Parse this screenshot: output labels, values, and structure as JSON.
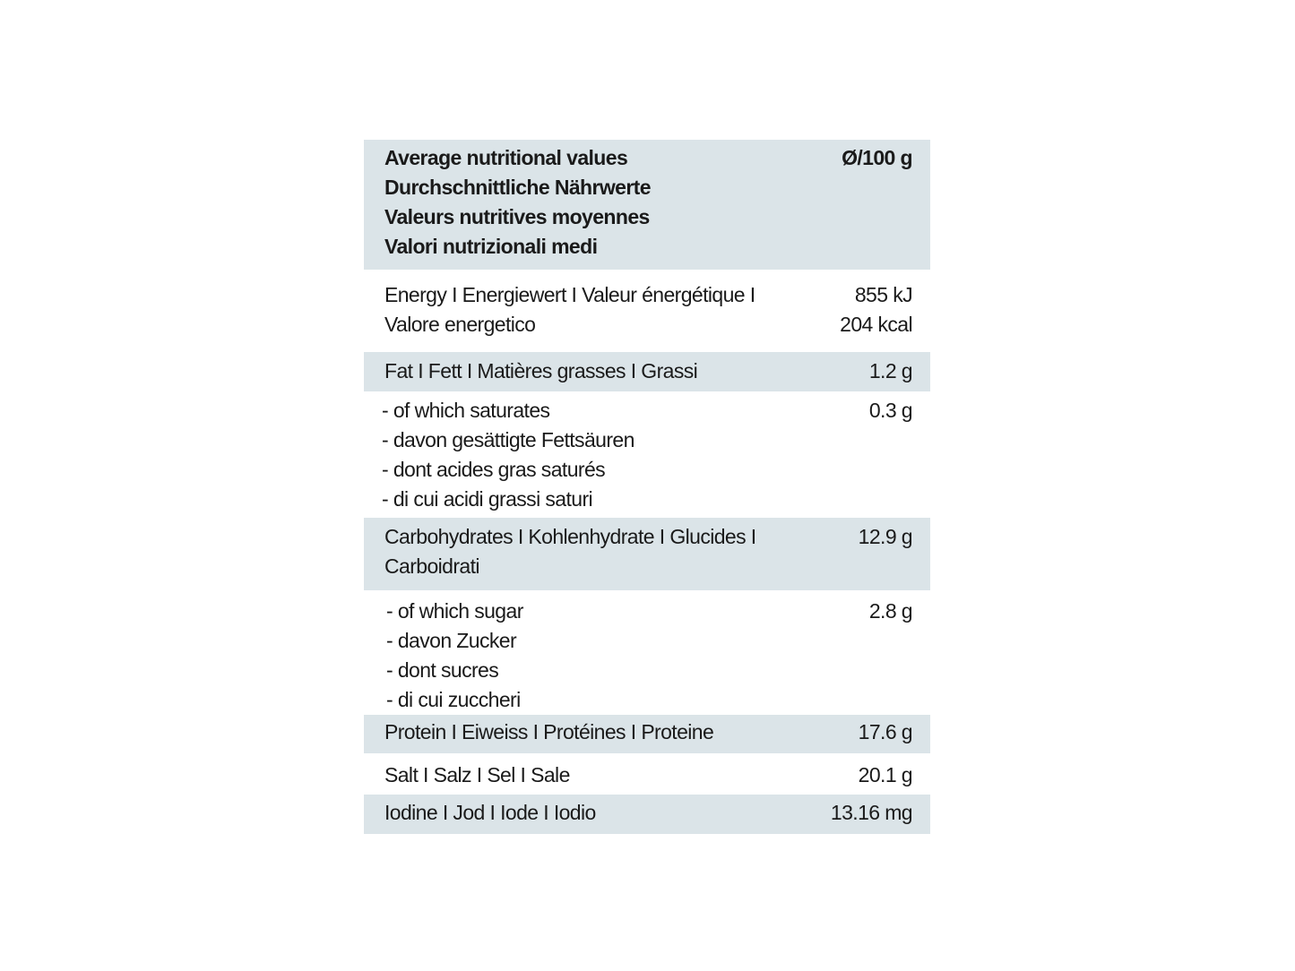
{
  "header": {
    "label": "Average nutritional values\nDurchschnittliche Nährwerte\nValeurs nutritives moyennes\nValori nutrizionali medi",
    "value": "Ø/100 g"
  },
  "rows": [
    {
      "label": "Energy I Energiewert I Valeur énergétique I\nValore energetico",
      "value": "855 kJ\n204 kcal"
    },
    {
      "label": "Fat I Fett I Matières grasses I Grassi",
      "value": "1.2 g"
    },
    {
      "label": "- of which saturates\n- davon gesättigte Fettsäuren\n- dont acides gras saturés\n- di cui acidi grassi saturi",
      "value": "0.3 g"
    },
    {
      "label": "Carbohydrates I Kohlenhydrate I Glucides I\nCarboidrati",
      "value": "12.9 g"
    },
    {
      "label": "- of which sugar\n- davon Zucker\n- dont sucres\n- di cui zuccheri",
      "value": "2.8 g"
    },
    {
      "label": "Protein I Eiweiss I Protéines I Proteine",
      "value": "17.6 g"
    },
    {
      "label": "Salt I Salz I Sel I Sale",
      "value": "20.1 g"
    },
    {
      "label": "Iodine I Jod I Iode I Iodio",
      "value": "13.16 mg"
    }
  ],
  "colors": {
    "shade": "#dbe4e8",
    "text": "#1a1a1a"
  }
}
